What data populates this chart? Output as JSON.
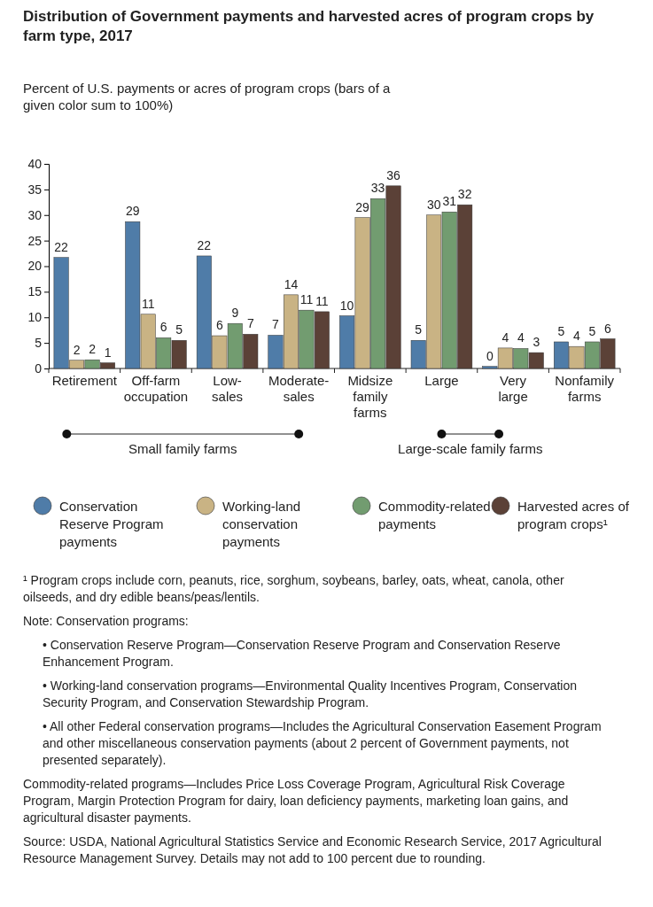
{
  "chart_data": {
    "type": "bar",
    "title": "Distribution of Government payments and harvested acres of program crops by farm type, 2017",
    "ylabel": "Percent of U.S. payments or acres of program crops (bars of a given color sum to 100%)",
    "categories": [
      "Retirement",
      "Off-farm occupation",
      "Low-sales",
      "Moderate-sales",
      "Midsize family farms",
      "Large",
      "Very large",
      "Nonfamily farms"
    ],
    "series": [
      {
        "name": "Conservation Reserve Program payments",
        "color": "#4f7ca8",
        "values": [
          21.7,
          28.7,
          22.0,
          6.5,
          10.3,
          5.5,
          0.4,
          5.2
        ],
        "value_labels": [
          "22",
          "29",
          "22",
          "7",
          "10",
          "5",
          "0",
          "5"
        ]
      },
      {
        "name": "Working-land conservation payments",
        "color": "#c9b384",
        "values": [
          1.6,
          10.6,
          6.4,
          14.4,
          29.5,
          30.0,
          4.0,
          4.3
        ],
        "value_labels": [
          "2",
          "11",
          "6",
          "14",
          "29",
          "30",
          "4",
          "4"
        ]
      },
      {
        "name": "Commodity-related payments",
        "color": "#729c70",
        "values": [
          1.7,
          6.0,
          8.8,
          11.4,
          33.2,
          30.6,
          3.9,
          5.2
        ],
        "value_labels": [
          "2",
          "6",
          "9",
          "11",
          "33",
          "31",
          "4",
          "5"
        ]
      },
      {
        "name": "Harvested acres of program crops¹",
        "color": "#5b4137",
        "values": [
          1.1,
          5.5,
          6.7,
          11.1,
          35.7,
          32.0,
          3.1,
          5.8
        ],
        "value_labels": [
          "1",
          "5",
          "7",
          "11",
          "36",
          "32",
          "3",
          "6"
        ]
      }
    ],
    "ylim": [
      0,
      40
    ],
    "yticks": [
      0,
      5,
      10,
      15,
      20,
      25,
      30,
      35,
      40
    ],
    "legend": "bottom",
    "annotations": [
      "Small family farms",
      "Large-scale family farms",
      "¹ Program crops include corn, peanuts, rice, sorghum, soybeans, barley, oats, wheat, canola, other oilseeds, and dry edible beans/peas/lentils.",
      "Note:  Conservation programs:",
      "• Conservation Reserve Program—Conservation Reserve Program and Conservation Reserve Enhancement  Program.",
      "• Working-land conservation programs—Environmental Quality Incentives Program, Conservation Security Program, and Conservation Stewardship Program.",
      "• All other Federal conservation programs—Includes the Agricultural Conservation Easement Program and other miscellaneous conservation payments (about 2 percent of Government payments, not presented separately).",
      "Commodity-related programs—Includes Price Loss Coverage Program, Agricultural Risk Coverage Program, Margin Protection Program for dairy, loan deficiency payments, marketing loan gains, and agricultural disaster payments.",
      "Source: USDA, National Agricultural Statistics Service and Economic Research Service, 2017 Agricultural Resource Management Survey. Details may not add to 100 percent due to rounding."
    ]
  }
}
